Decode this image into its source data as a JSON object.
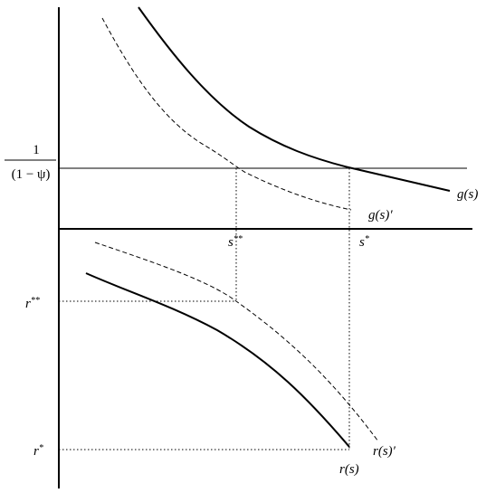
{
  "axis_label": {
    "numerator": "1",
    "denominator": "(1 − ψ)"
  },
  "curves": {
    "g": "g(s)",
    "g_shifted": "g(s)′",
    "r": "r(s)",
    "r_shifted": "r(s)′"
  },
  "s_marks": [
    {
      "base": "s",
      "sup": "**"
    },
    {
      "base": "s",
      "sup": "*"
    }
  ],
  "r_marks": [
    {
      "base": "r",
      "sup": "**"
    },
    {
      "base": "r",
      "sup": "*"
    }
  ]
}
